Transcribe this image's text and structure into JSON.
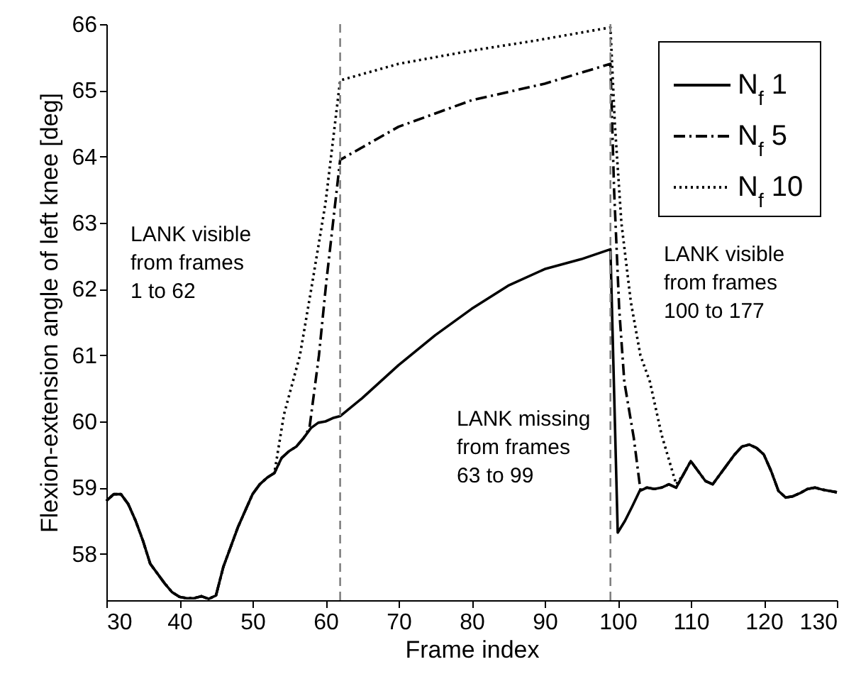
{
  "chart_data": {
    "type": "line",
    "xlabel": "Frame index",
    "ylabel": "Flexion-extension angle of left knee [deg]",
    "xlim": [
      30,
      130
    ],
    "xticks": [
      30,
      40,
      50,
      60,
      70,
      80,
      90,
      100,
      110,
      120,
      130
    ],
    "ylim": [
      57.3,
      66
    ],
    "yticks": [
      58,
      59,
      60,
      61,
      62,
      63,
      64,
      65,
      66
    ],
    "grid": false,
    "legend": "top right",
    "marker": "none",
    "series": [
      {
        "name": "N$_{f}$ 1",
        "color": "#000000",
        "line_style": "solid",
        "x": [
          30,
          31,
          32,
          33,
          34,
          35,
          36,
          37,
          38,
          39,
          40,
          41,
          42,
          43,
          44,
          45,
          46,
          47,
          48,
          49,
          50,
          51,
          52,
          53,
          54,
          55,
          56,
          57,
          58,
          59,
          60,
          61,
          62,
          65,
          70,
          75,
          80,
          85,
          90,
          95,
          99,
          100,
          101,
          102,
          103,
          104,
          105,
          106,
          107,
          108,
          109,
          110,
          111,
          112,
          113,
          114,
          115,
          116,
          117,
          118,
          119,
          120,
          121,
          122,
          123,
          124,
          125,
          126,
          127,
          128,
          129,
          130
        ],
        "values": [
          58.8,
          58.9,
          58.9,
          58.75,
          58.5,
          58.2,
          57.85,
          57.7,
          57.55,
          57.42,
          57.35,
          57.33,
          57.33,
          57.36,
          57.32,
          57.37,
          57.8,
          58.1,
          58.4,
          58.65,
          58.9,
          59.05,
          59.15,
          59.22,
          59.45,
          59.55,
          59.62,
          59.75,
          59.9,
          59.98,
          60.0,
          60.05,
          60.08,
          60.35,
          60.85,
          61.3,
          61.7,
          62.05,
          62.3,
          62.45,
          62.6,
          58.32,
          58.5,
          58.72,
          58.95,
          59.0,
          58.98,
          59.0,
          59.05,
          59.0,
          59.2,
          59.4,
          59.25,
          59.1,
          59.05,
          59.2,
          59.35,
          59.5,
          59.62,
          59.65,
          59.6,
          59.5,
          59.25,
          58.95,
          58.85,
          58.87,
          58.92,
          58.98,
          59.0,
          58.97,
          58.95,
          58.93
        ]
      },
      {
        "name": "N$_{f}$ 5",
        "color": "#000000",
        "line_style": "dashdot",
        "x": [
          30,
          31,
          32,
          33,
          34,
          35,
          36,
          37,
          38,
          39,
          40,
          41,
          42,
          43,
          44,
          45,
          46,
          47,
          48,
          49,
          50,
          51,
          52,
          53,
          54,
          55,
          56,
          57,
          57.8,
          59.1,
          60.1,
          62,
          70,
          80,
          90,
          99,
          99.5,
          100.2,
          100.9,
          102.2,
          103.1,
          104,
          105,
          106,
          107,
          108,
          109,
          110,
          111,
          112,
          113,
          114,
          115,
          116,
          117,
          118,
          119,
          120,
          121,
          122,
          123,
          124,
          125,
          126,
          127,
          128,
          129,
          130
        ],
        "values": [
          58.8,
          58.9,
          58.9,
          58.75,
          58.5,
          58.2,
          57.85,
          57.7,
          57.55,
          57.42,
          57.35,
          57.33,
          57.33,
          57.36,
          57.32,
          57.37,
          57.8,
          58.1,
          58.4,
          58.65,
          58.9,
          59.05,
          59.15,
          59.22,
          59.45,
          59.55,
          59.62,
          59.75,
          59.9,
          61.0,
          62.1,
          63.95,
          64.45,
          64.85,
          65.1,
          65.4,
          63.5,
          61.7,
          60.6,
          59.75,
          58.97,
          59.0,
          58.98,
          59.0,
          59.05,
          59.0,
          59.2,
          59.4,
          59.25,
          59.1,
          59.05,
          59.2,
          59.35,
          59.5,
          59.62,
          59.65,
          59.6,
          59.5,
          59.25,
          58.95,
          58.85,
          58.87,
          58.92,
          58.98,
          59.0,
          58.97,
          58.95,
          58.93
        ]
      },
      {
        "name": "N$_{f}$ 10",
        "color": "#000000",
        "line_style": "dotted",
        "x": [
          30,
          31,
          32,
          33,
          34,
          35,
          36,
          37,
          38,
          39,
          40,
          41,
          42,
          43,
          44,
          45,
          46,
          47,
          48,
          49,
          50,
          51,
          52,
          53,
          54.3,
          56.5,
          58.2,
          60,
          62,
          70,
          80,
          89.2,
          99,
          99.6,
          100.5,
          101.8,
          103.1,
          104.4,
          106,
          108,
          109,
          110,
          111,
          112,
          113,
          114,
          115,
          116,
          117,
          118,
          119,
          120,
          121,
          122,
          123,
          124,
          125,
          126,
          127,
          128,
          129,
          130
        ],
        "values": [
          58.8,
          58.9,
          58.9,
          58.75,
          58.5,
          58.2,
          57.85,
          57.7,
          57.55,
          57.42,
          57.35,
          57.33,
          57.33,
          57.36,
          57.32,
          57.37,
          57.8,
          58.1,
          58.4,
          58.65,
          58.9,
          59.05,
          59.15,
          59.22,
          60.1,
          61.0,
          62.1,
          63.3,
          65.15,
          65.4,
          65.6,
          65.76,
          65.95,
          64.5,
          63.0,
          61.8,
          61.0,
          60.6,
          59.8,
          59.05,
          59.2,
          59.4,
          59.25,
          59.1,
          59.05,
          59.2,
          59.35,
          59.5,
          59.62,
          59.65,
          59.6,
          59.5,
          59.25,
          58.95,
          58.85,
          58.87,
          58.92,
          58.98,
          59.0,
          58.97,
          58.95,
          58.93
        ]
      }
    ],
    "ref_lines": [
      {
        "axis": "x",
        "value": 62,
        "color": "#808080",
        "line_style": "dashed"
      },
      {
        "axis": "x",
        "value": 99,
        "color": "#808080",
        "line_style": "dashed"
      }
    ],
    "annotations": [
      "LANK visible\nfrom frames\n1 to 62",
      "LANK missing\nfrom frames\n63 to 99",
      "LANK visible\nfrom frames\n100 to 177"
    ]
  }
}
